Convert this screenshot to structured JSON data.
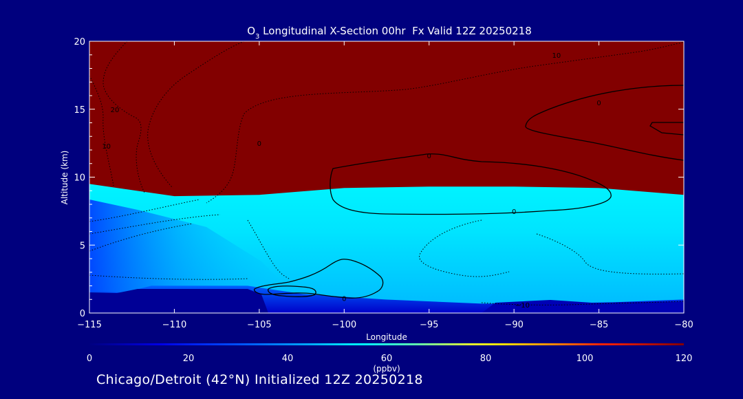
{
  "chart_data": {
    "type": "heatmap",
    "title": {
      "prefix": "O",
      "subscript": "3",
      "rest": " Longitudinal X-Section 00hr  Fx Valid 12Z 20250218"
    },
    "xlabel": "Longitude",
    "ylabel": "Altitude (km)",
    "xlim": [
      -115,
      -80
    ],
    "ylim": [
      0,
      20
    ],
    "xticks": [
      -115,
      -110,
      -105,
      -100,
      -95,
      -90,
      -85,
      -80
    ],
    "xtick_labels": [
      "−115",
      "−110",
      "−105",
      "−100",
      "−95",
      "−90",
      "−85",
      "−80"
    ],
    "yticks": [
      0,
      5,
      10,
      15,
      20
    ],
    "ytick_labels": [
      "0",
      "5",
      "10",
      "15",
      "20"
    ],
    "colorbar": {
      "label": "(ppbv)",
      "min": 0,
      "max": 120,
      "ticks": [
        0,
        20,
        40,
        60,
        80,
        100,
        120
      ],
      "tick_labels": [
        "0",
        "20",
        "40",
        "60",
        "80",
        "100",
        "120"
      ]
    },
    "field_summary": {
      "tropopause_altitude_km": [
        {
          "lon": -115,
          "alt": 9.5
        },
        {
          "lon": -110,
          "alt": 8.6
        },
        {
          "lon": -105,
          "alt": 8.7
        },
        {
          "lon": -100,
          "alt": 9.2
        },
        {
          "lon": -95,
          "alt": 9.3
        },
        {
          "lon": -90,
          "alt": 9.3
        },
        {
          "lon": -85,
          "alt": 9.2
        },
        {
          "lon": -80,
          "alt": 8.7
        }
      ],
      "stratosphere_value_ppbv": 120,
      "boundary_layer_top_km": 1.7
    },
    "contour_labels": [
      {
        "text": "10",
        "lon": -87.5,
        "alt": 19.0
      },
      {
        "text": "0",
        "lon": -85.0,
        "alt": 15.5
      },
      {
        "text": "0",
        "lon": -95.0,
        "alt": 11.6
      },
      {
        "text": "0",
        "lon": -90.0,
        "alt": 7.5
      },
      {
        "text": "0",
        "lon": -100.0,
        "alt": 1.1
      },
      {
        "text": "−10",
        "lon": -89.5,
        "alt": 0.6
      },
      {
        "text": "20",
        "lon": -113.5,
        "alt": 15.0
      },
      {
        "text": "10",
        "lon": -114.0,
        "alt": 12.3
      },
      {
        "text": "0",
        "lon": -105.0,
        "alt": 12.5
      }
    ]
  },
  "footer": {
    "text": "Chicago/Detroit (42°N) Initialized 12Z 20250218"
  },
  "colors": {
    "background": "#00007e",
    "stratosphere": "#820000",
    "contour_solid": "#000000"
  }
}
